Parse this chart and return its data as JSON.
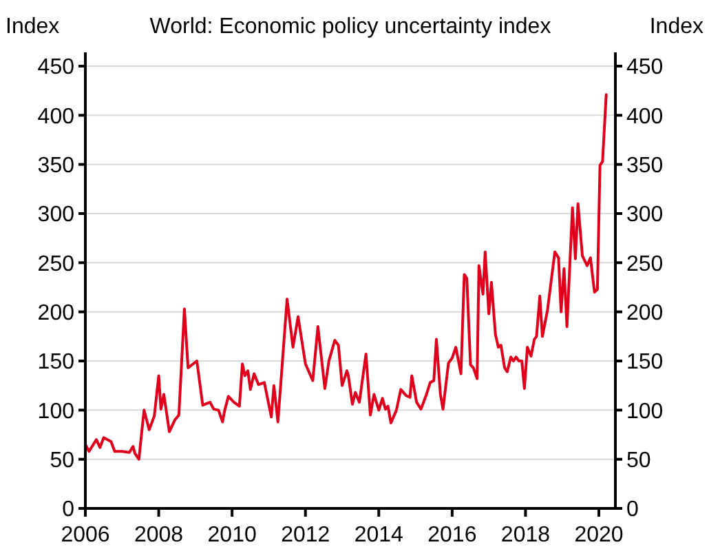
{
  "chart_data": {
    "type": "line",
    "title": "World: Economic policy uncertainty index",
    "ylabel": "Index",
    "y2label": "Index",
    "xlim": [
      2006,
      2020.45
    ],
    "xticks": [
      2006,
      2008,
      2010,
      2012,
      2014,
      2016,
      2018,
      2020
    ],
    "ylim": [
      0,
      450
    ],
    "yticks": [
      0,
      50,
      100,
      150,
      200,
      250,
      300,
      350,
      400,
      450
    ],
    "y2lim": [
      0,
      450
    ],
    "y2ticks": [
      0,
      50,
      100,
      150,
      200,
      250,
      300,
      350,
      400,
      450
    ],
    "grid": "y",
    "line_style": "solid",
    "series": [
      {
        "color": "#e0001b",
        "x": [
          2006,
          2006.1,
          2006.3,
          2006.4,
          2006.5,
          2006.7,
          2006.8,
          2007,
          2007.2,
          2007.3,
          2007.35,
          2007.46,
          2007.6,
          2007.74,
          2007.88,
          2008,
          2008.06,
          2008.14,
          2008.29,
          2008.44,
          2008.55,
          2008.7,
          2008.8,
          2009.04,
          2009.2,
          2009.4,
          2009.5,
          2009.63,
          2009.74,
          2009.8,
          2009.9,
          2010.05,
          2010.2,
          2010.28,
          2010.35,
          2010.43,
          2010.5,
          2010.6,
          2010.72,
          2010.88,
          2011.07,
          2011.14,
          2011.25,
          2011.5,
          2011.66,
          2011.8,
          2012,
          2012.2,
          2012.34,
          2012.53,
          2012.64,
          2012.8,
          2012.9,
          2013,
          2013.13,
          2013.17,
          2013.28,
          2013.36,
          2013.47,
          2013.65,
          2013.77,
          2013.87,
          2014,
          2014.1,
          2014.18,
          2014.25,
          2014.33,
          2014.48,
          2014.6,
          2014.74,
          2014.85,
          2014.9,
          2015.03,
          2015.15,
          2015.3,
          2015.4,
          2015.5,
          2015.57,
          2015.68,
          2015.75,
          2015.9,
          2016,
          2016.1,
          2016.24,
          2016.33,
          2016.4,
          2016.5,
          2016.58,
          2016.68,
          2016.73,
          2016.84,
          2016.9,
          2017,
          2017.07,
          2017.18,
          2017.26,
          2017.33,
          2017.43,
          2017.5,
          2017.6,
          2017.67,
          2017.74,
          2017.82,
          2017.9,
          2017.97,
          2018.05,
          2018.15,
          2018.24,
          2018.3,
          2018.39,
          2018.46,
          2018.6,
          2018.8,
          2018.9,
          2018.97,
          2019.05,
          2019.13,
          2019.28,
          2019.36,
          2019.43,
          2019.55,
          2019.68,
          2019.77,
          2019.88,
          2019.96,
          2020.03,
          2020.1,
          2020.2
        ],
        "values": [
          65,
          58,
          70,
          62,
          72,
          68,
          58,
          58,
          57,
          63,
          56,
          50,
          100,
          80,
          94,
          135,
          101,
          116,
          78,
          90,
          95,
          203,
          143,
          150,
          105,
          108,
          101,
          100,
          88,
          100,
          114,
          108,
          104,
          147,
          135,
          140,
          121,
          137,
          126,
          128,
          93,
          125,
          88,
          213,
          164,
          195,
          147,
          130,
          185,
          122,
          150,
          171,
          166,
          125,
          140,
          135,
          106,
          118,
          108,
          157,
          95,
          116,
          100,
          112,
          101,
          104,
          87,
          100,
          121,
          115,
          113,
          135,
          108,
          101,
          116,
          128,
          130,
          172,
          116,
          101,
          148,
          153,
          164,
          137,
          238,
          234,
          146,
          143,
          132,
          247,
          218,
          261,
          198,
          230,
          177,
          164,
          166,
          143,
          139,
          154,
          150,
          154,
          150,
          150,
          122,
          164,
          155,
          172,
          175,
          216,
          175,
          202,
          261,
          255,
          200,
          244,
          185,
          306,
          254,
          310,
          257,
          247,
          255,
          220,
          223,
          349,
          353,
          421
        ]
      }
    ]
  }
}
